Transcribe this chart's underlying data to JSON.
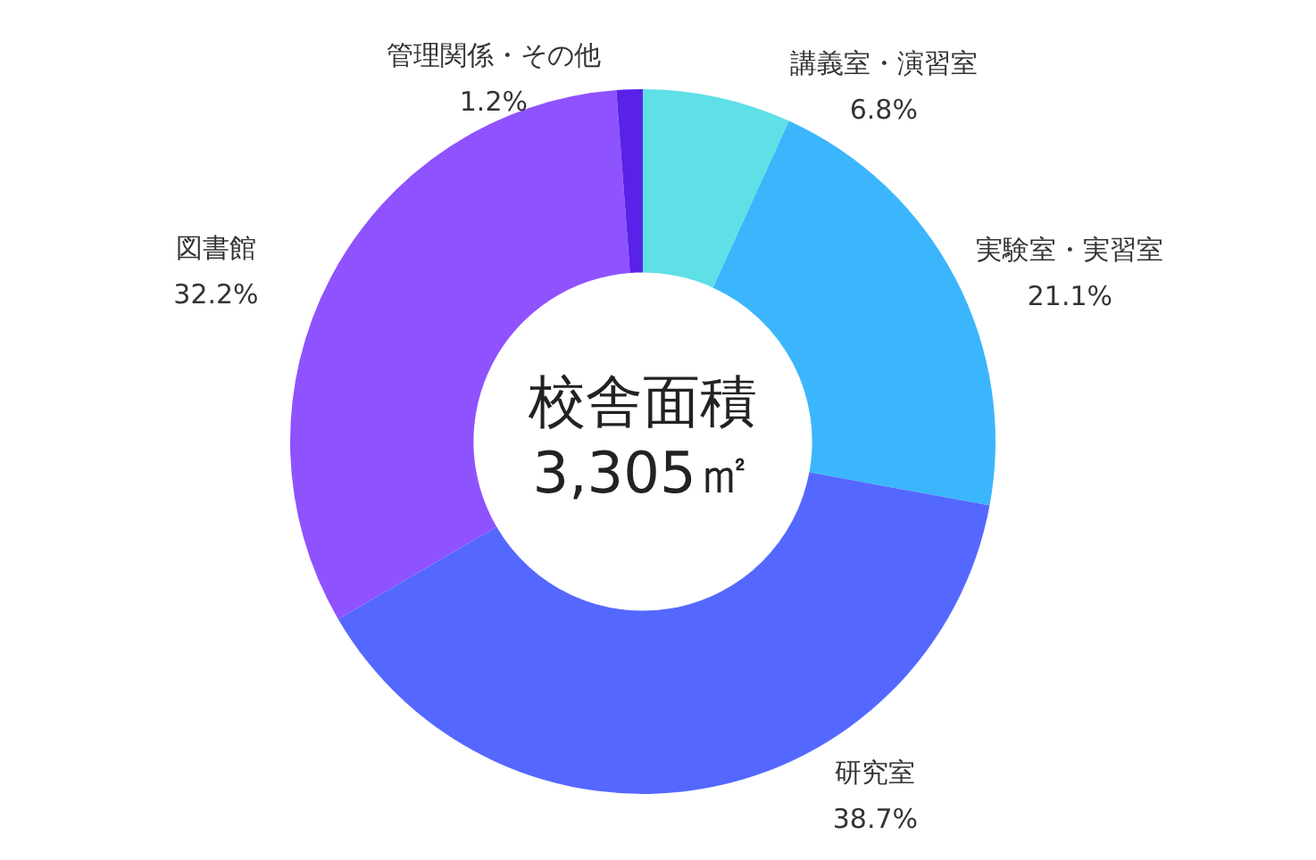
{
  "chart_data": {
    "type": "donut",
    "categories": [
      "講義室・演習室",
      "実験室・実習室",
      "研究室",
      "図書館",
      "管理関係・その他"
    ],
    "values": [
      6.8,
      21.1,
      38.7,
      32.2,
      1.2
    ],
    "value_labels": [
      "6.8%",
      "21.1%",
      "38.7%",
      "32.2%",
      "1.2%"
    ],
    "colors": [
      "#5ee0e6",
      "#3bb6fc",
      "#5468ff",
      "#8f52ff",
      "#5a22e8"
    ],
    "annotations": [
      "校舎面積",
      "3,305㎡"
    ],
    "legend": false
  }
}
